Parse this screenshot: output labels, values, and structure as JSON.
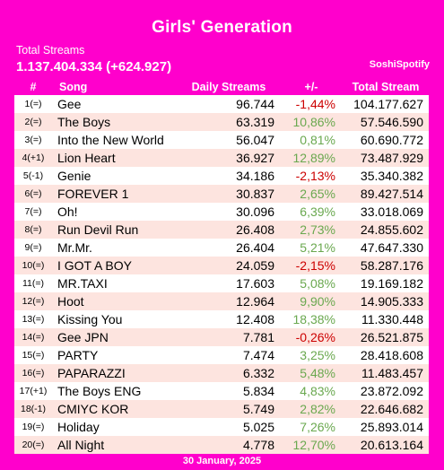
{
  "title": "Girls' Generation",
  "total_label": "Total Streams",
  "total_value": "1.137.404.334 (+624.927)",
  "source": "SoshiSpotify",
  "headers": {
    "rank": "#",
    "song": "Song",
    "daily": "Daily Streams",
    "change": "+/-",
    "total": "Total Stream"
  },
  "rows": [
    {
      "rank": "1(=)",
      "song": "Gee",
      "daily": "96.744",
      "change": "-1,44%",
      "total": "104.177.627",
      "trend": "neg"
    },
    {
      "rank": "2(=)",
      "song": "The Boys",
      "daily": "63.319",
      "change": "10,86%",
      "total": "57.546.590",
      "trend": "pos"
    },
    {
      "rank": "3(=)",
      "song": "Into the New World",
      "daily": "56.047",
      "change": "0,81%",
      "total": "60.690.772",
      "trend": "pos"
    },
    {
      "rank": "4(+1)",
      "song": "Lion Heart",
      "daily": "36.927",
      "change": "12,89%",
      "total": "73.487.929",
      "trend": "pos"
    },
    {
      "rank": "5(-1)",
      "song": "Genie",
      "daily": "34.186",
      "change": "-2,13%",
      "total": "35.340.382",
      "trend": "neg"
    },
    {
      "rank": "6(=)",
      "song": "FOREVER 1",
      "daily": "30.837",
      "change": "2,65%",
      "total": "89.427.514",
      "trend": "pos"
    },
    {
      "rank": "7(=)",
      "song": "Oh!",
      "daily": "30.096",
      "change": "6,39%",
      "total": "33.018.069",
      "trend": "pos"
    },
    {
      "rank": "8(=)",
      "song": "Run Devil Run",
      "daily": "26.408",
      "change": "2,73%",
      "total": "24.855.602",
      "trend": "pos"
    },
    {
      "rank": "9(=)",
      "song": "Mr.Mr.",
      "daily": "26.404",
      "change": "5,21%",
      "total": "47.647.330",
      "trend": "pos"
    },
    {
      "rank": "10(=)",
      "song": "I GOT A BOY",
      "daily": "24.059",
      "change": "-2,15%",
      "total": "58.287.176",
      "trend": "neg"
    },
    {
      "rank": "11(=)",
      "song": "MR.TAXI",
      "daily": "17.603",
      "change": "5,08%",
      "total": "19.169.182",
      "trend": "pos"
    },
    {
      "rank": "12(=)",
      "song": "Hoot",
      "daily": "12.964",
      "change": "9,90%",
      "total": "14.905.333",
      "trend": "pos"
    },
    {
      "rank": "13(=)",
      "song": "Kissing You",
      "daily": "12.408",
      "change": "18,38%",
      "total": "11.330.448",
      "trend": "pos"
    },
    {
      "rank": "14(=)",
      "song": "Gee JPN",
      "daily": "7.781",
      "change": "-0,26%",
      "total": "26.521.875",
      "trend": "neg"
    },
    {
      "rank": "15(=)",
      "song": "PARTY",
      "daily": "7.474",
      "change": "3,25%",
      "total": "28.418.608",
      "trend": "pos"
    },
    {
      "rank": "16(=)",
      "song": "PAPARAZZI",
      "daily": "6.332",
      "change": "5,48%",
      "total": "11.483.457",
      "trend": "pos"
    },
    {
      "rank": "17(+1)",
      "song": "The Boys ENG",
      "daily": "5.834",
      "change": "4,83%",
      "total": "23.872.092",
      "trend": "pos"
    },
    {
      "rank": "18(-1)",
      "song": "CMIYC KOR",
      "daily": "5.749",
      "change": "2,82%",
      "total": "22.646.682",
      "trend": "pos"
    },
    {
      "rank": "19(=)",
      "song": "Holiday",
      "daily": "5.025",
      "change": "7,26%",
      "total": "25.893.014",
      "trend": "pos"
    },
    {
      "rank": "20(=)",
      "song": "All Night",
      "daily": "4.778",
      "change": "12,70%",
      "total": "20.613.164",
      "trend": "pos"
    }
  ],
  "date": "30 January, 2025",
  "colors": {
    "background": "#ff00cc",
    "row_alt": "#fde4df",
    "positive": "#6aa84f",
    "negative": "#cc0000"
  }
}
